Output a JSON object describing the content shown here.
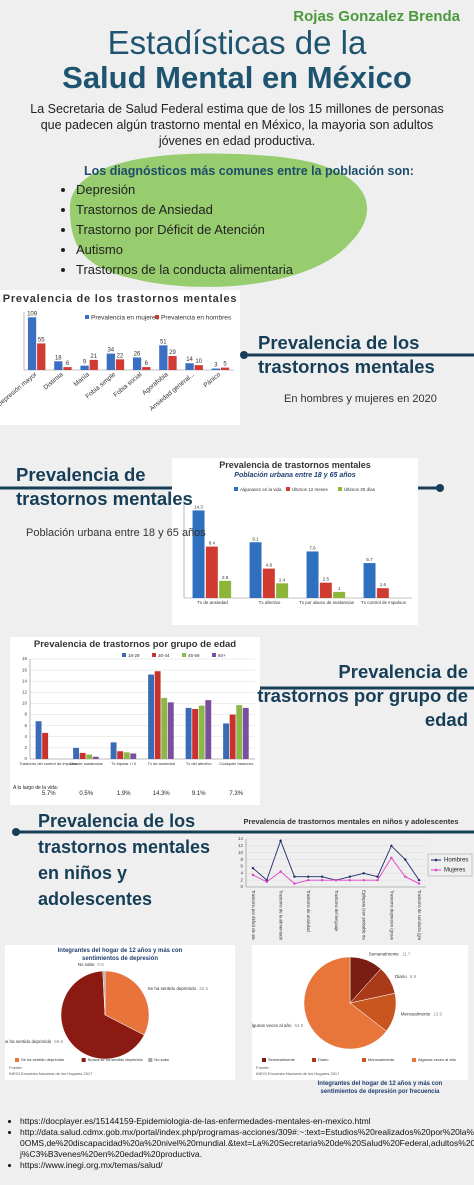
{
  "header": {
    "author": "Rojas Gonzalez Brenda",
    "title_line1": "Estadísticas de la",
    "title_line2": "Salud Mental en México",
    "intro": "La Secretaria de Salud Federal estima que de los 15 millones de personas que padecen algún trastorno mental en México, la mayoria son adultos jóvenes en edad productiva.",
    "diagnoses_heading": "Los diagnósticos más comunes entre la población son:",
    "diagnoses": [
      "Depresión",
      "Trastornos de Ansiedad",
      "Trastorno por Déficit de Atención",
      "Autismo",
      "Trastornos de la conducta alimentaria"
    ]
  },
  "sections": [
    {
      "heading": "Prevalencia de los trastornos mentales",
      "text": "En hombres y mujeres en 2020"
    },
    {
      "heading": "Prevalencia de trastornos mentales",
      "text": "Población urbana entre 18 y 65 años"
    },
    {
      "heading": "Prevalencia de trastornos por grupo de edad"
    },
    {
      "heading": "Prevalencia de los trastornos mentales en niños y adolescentes"
    }
  ],
  "chart_data": [
    {
      "type": "bar",
      "title": "Prevalencia de los trastornos mentales",
      "categories": [
        "Depresión mayor",
        "Distimia",
        "Manía",
        "Fobia simple",
        "Fobia social",
        "Agorafobia",
        "Ansiedad general...",
        "Pánico"
      ],
      "series": [
        {
          "name": "Prevalencia en mujeres",
          "color": "#3a6fc4",
          "values": [
            109,
            18,
            9,
            34,
            26,
            51,
            14,
            3
          ]
        },
        {
          "name": "Prevalencia en hombres",
          "color": "#d23a35",
          "values": [
            55,
            6,
            21,
            22,
            6,
            29,
            10,
            5
          ]
        }
      ],
      "ylim": [
        0,
        120
      ],
      "data_labels": true,
      "rotate_labels": true
    },
    {
      "type": "bar",
      "title": "Prevalencia de trastornos mentales",
      "subtitle": "Población urbana entre 18 y 65 años",
      "categories": [
        "Tx de ansiedad",
        "Tx afectivo",
        "Tx por abuso de sustancias",
        "Tx control de impulsos"
      ],
      "series": [
        {
          "name": "Algunavez en la vida",
          "color": "#2e6fc0",
          "values": [
            14.3,
            9.1,
            7.6,
            5.7
          ]
        },
        {
          "name": "Últimos 12 meses",
          "color": "#cf3b30",
          "values": [
            8.4,
            4.8,
            2.5,
            1.6
          ]
        },
        {
          "name": "Últimos 30 días",
          "color": "#8db53a",
          "values": [
            2.8,
            2.4,
            1,
            null
          ]
        }
      ],
      "ylim": [
        0,
        16
      ],
      "data_labels": true,
      "rotate_labels": false
    },
    {
      "type": "bar",
      "title": "Prevalencia de trastornos por grupo de edad",
      "categories": [
        "Trastorno del control de impulsos",
        "Uso de sustancias",
        "Tx bipolar I / II",
        "Tx de ansiedad",
        "Tx del afectivo",
        "Cualquier trastorno"
      ],
      "series": [
        {
          "name": "18-29",
          "color": "#3b6bb5",
          "values": [
            6.8,
            2.0,
            3.0,
            15.2,
            9.2,
            6.4
          ]
        },
        {
          "name": "30-44",
          "color": "#c8322e",
          "values": [
            4.7,
            1.1,
            1.4,
            15.8,
            9.0,
            8.0
          ]
        },
        {
          "name": "45-59",
          "color": "#8cb84a",
          "values": [
            null,
            0.8,
            1.2,
            11.0,
            9.6,
            9.7
          ]
        },
        {
          "name": "60+",
          "color": "#7a4fa0",
          "values": [
            null,
            0.4,
            1.0,
            10.2,
            10.6,
            9.2
          ]
        }
      ],
      "ylim": [
        0,
        18
      ],
      "yticks": [
        0,
        2,
        4,
        6,
        8,
        10,
        12,
        14,
        16,
        18
      ],
      "grid": true,
      "data_labels": false,
      "rotate_labels": false,
      "row_label": "A lo largo de la vida:",
      "row_values": [
        "5.7%",
        "0.5%",
        "1.9%",
        "14.3%",
        "9.1%",
        "7.3%"
      ]
    },
    {
      "type": "line",
      "title": "Prevalencia de trastornos mentales en niños y adolescentes",
      "categories": [
        "Trastorno por déficit de atención",
        null,
        "Trastorno de la alimentación de tipo",
        null,
        "Trastorno de ansiedad",
        null,
        "Trastorno del lenguaje",
        null,
        "Epilepsia (con probable mayor de 18)",
        null,
        "Trastorno depresivo (grave 1)",
        null,
        "Trastorno de conducta (grave)"
      ],
      "series": [
        {
          "name": "Hombres",
          "color": "#1f2a6b",
          "values": [
            5.5,
            2,
            13.5,
            3,
            3,
            3,
            2,
            3,
            4,
            3,
            12,
            8,
            2
          ]
        },
        {
          "name": "Mujeres",
          "color": "#e040c8",
          "values": [
            3.5,
            1.5,
            4.5,
            1,
            2,
            2,
            2,
            2,
            2,
            2,
            8.5,
            3,
            1
          ]
        }
      ],
      "ylim": [
        0,
        14
      ],
      "yticks": [
        0,
        2,
        4,
        6,
        8,
        10,
        12,
        14
      ],
      "grid": true
    },
    {
      "type": "pie",
      "title": "Integrantes del hogar de 12 años y más con sentimientos de depresión",
      "categories": [
        "Se ha sentido deprimido",
        "Nunca se ha sentido deprimido",
        "No sabe"
      ],
      "values": [
        32.5,
        66.6,
        0.8
      ],
      "colors": [
        "#e8743b",
        "#8b1a12",
        "#a5a5a5"
      ],
      "source_label": "Fuente:",
      "source": "INEGI Encuesta Nacional de los Hogares 2017"
    },
    {
      "type": "pie",
      "title": "Integrantes del hogar de 12 años y más con sentimientos de depresión por frecuencia",
      "categories": [
        "Semanalmente",
        "Diario",
        "Mensualmente",
        "Algunas veces al año"
      ],
      "values": [
        11.7,
        9.9,
        13.9,
        64.5
      ],
      "colors": [
        "#7a1d12",
        "#a83a1a",
        "#c9561f",
        "#e8763b"
      ],
      "source_label": "Fuente:",
      "source": "INEGI Encuesta Nacional de los Hogares 2017"
    }
  ],
  "references": [
    "https://docplayer.es/15144159-Epidemiologia-de-las-enfermedades-mentales-en-mexico.html",
    "http://data.salud.cdmx.gob.mx/portal/index.php/programas-acciones/309#:~:text=Estudios%20realizados%20por%20la%20OMS,de%20discapacidad%20a%20nivel%20mundial.&text=La%20Secretaria%20de%20Salud%20Federal,adultos%20j%C3%B3venes%20en%20edad%20productiva.",
    "https://www.inegi.org.mx/temas/salud/"
  ]
}
